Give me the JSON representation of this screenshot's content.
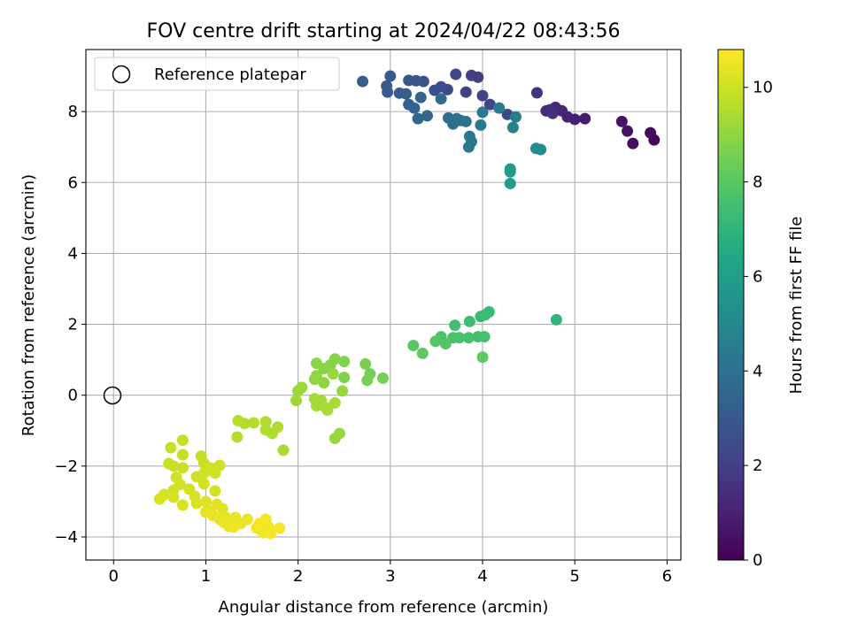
{
  "chart_data": {
    "type": "scatter",
    "title": "FOV centre drift starting at 2024/04/22 08:43:56",
    "xlabel": "Angular distance from reference (arcmin)",
    "ylabel": "Rotation from reference (arcmin)",
    "xlim": [
      -0.3,
      6.15
    ],
    "ylim": [
      -4.65,
      9.75
    ],
    "x_ticks": [
      0,
      1,
      2,
      3,
      4,
      5,
      6
    ],
    "y_ticks": [
      -4,
      -2,
      0,
      2,
      4,
      6,
      8
    ],
    "grid": true,
    "legend": {
      "position": "top-left",
      "entries": [
        {
          "label": "Reference platepar",
          "marker": "open-circle"
        }
      ]
    },
    "reference_point": {
      "x": 0,
      "y": 0
    },
    "colorbar": {
      "label": "Hours from first FF file",
      "colormap": "viridis",
      "range": [
        0,
        10.8
      ],
      "ticks": [
        0,
        2,
        4,
        6,
        8,
        10
      ]
    },
    "series": [
      {
        "color_by": "hours",
        "points": [
          [
            5.86,
            7.2,
            0.2
          ],
          [
            5.82,
            7.4,
            0.3
          ],
          [
            5.63,
            7.1,
            0.4
          ],
          [
            5.57,
            7.45,
            0.5
          ],
          [
            5.51,
            7.72,
            0.6
          ],
          [
            5.11,
            7.8,
            0.8
          ],
          [
            5.0,
            7.78,
            0.9
          ],
          [
            4.92,
            7.85,
            1.0
          ],
          [
            4.86,
            8.02,
            1.1
          ],
          [
            4.79,
            8.12,
            1.2
          ],
          [
            4.73,
            8.05,
            1.3
          ],
          [
            4.69,
            8.02,
            1.4
          ],
          [
            4.76,
            7.95,
            1.5
          ],
          [
            4.59,
            8.53,
            1.6
          ],
          [
            4.27,
            7.92,
            2.4
          ],
          [
            4.08,
            8.2,
            2.2
          ],
          [
            4.0,
            8.45,
            2.2
          ],
          [
            3.95,
            8.97,
            2.0
          ],
          [
            3.88,
            9.02,
            2.0
          ],
          [
            3.82,
            8.55,
            2.1
          ],
          [
            3.71,
            9.05,
            2.3
          ],
          [
            3.62,
            8.62,
            2.4
          ],
          [
            3.55,
            8.7,
            2.5
          ],
          [
            3.48,
            8.6,
            2.6
          ],
          [
            3.36,
            8.85,
            2.7
          ],
          [
            3.28,
            8.87,
            2.9
          ],
          [
            3.2,
            8.88,
            3.0
          ],
          [
            3.0,
            9.0,
            3.0
          ],
          [
            2.96,
            8.72,
            3.1
          ],
          [
            2.7,
            8.85,
            3.2
          ],
          [
            2.97,
            8.55,
            3.1
          ],
          [
            3.1,
            8.52,
            3.1
          ],
          [
            3.17,
            8.5,
            3.2
          ],
          [
            3.2,
            8.2,
            3.3
          ],
          [
            3.26,
            8.1,
            3.4
          ],
          [
            3.33,
            8.4,
            3.5
          ],
          [
            3.3,
            7.8,
            3.6
          ],
          [
            3.4,
            7.88,
            3.6
          ],
          [
            3.55,
            8.36,
            3.7
          ],
          [
            3.63,
            7.82,
            3.8
          ],
          [
            3.72,
            7.8,
            3.9
          ],
          [
            3.68,
            7.65,
            3.9
          ],
          [
            3.76,
            7.75,
            4.0
          ],
          [
            3.82,
            7.72,
            4.1
          ],
          [
            3.86,
            7.3,
            4.2
          ],
          [
            3.88,
            7.15,
            4.3
          ],
          [
            3.85,
            7.0,
            4.3
          ],
          [
            4.0,
            7.98,
            4.4
          ],
          [
            3.98,
            7.62,
            4.4
          ],
          [
            4.18,
            8.1,
            4.5
          ],
          [
            4.36,
            7.85,
            4.6
          ],
          [
            4.33,
            7.55,
            4.7
          ],
          [
            4.58,
            6.96,
            5.2
          ],
          [
            4.63,
            6.93,
            5.3
          ],
          [
            4.3,
            6.38,
            5.8
          ],
          [
            4.3,
            6.3,
            5.8
          ],
          [
            4.3,
            5.97,
            6.0
          ],
          [
            4.8,
            2.13,
            7.0
          ],
          [
            4.07,
            2.35,
            7.2
          ],
          [
            4.03,
            2.27,
            7.3
          ],
          [
            3.98,
            2.22,
            7.3
          ],
          [
            3.86,
            2.08,
            7.4
          ],
          [
            3.7,
            1.97,
            7.5
          ],
          [
            3.95,
            1.65,
            7.5
          ],
          [
            4.02,
            1.65,
            7.6
          ],
          [
            3.85,
            1.62,
            7.6
          ],
          [
            3.75,
            1.62,
            7.7
          ],
          [
            3.68,
            1.62,
            7.7
          ],
          [
            3.55,
            1.65,
            7.8
          ],
          [
            3.49,
            1.52,
            7.9
          ],
          [
            3.6,
            1.45,
            7.9
          ],
          [
            3.25,
            1.4,
            8.0
          ],
          [
            3.35,
            1.18,
            8.1
          ],
          [
            4.0,
            1.07,
            8.1
          ],
          [
            2.92,
            0.48,
            8.5
          ],
          [
            2.78,
            0.6,
            8.5
          ],
          [
            2.73,
            0.88,
            8.6
          ],
          [
            2.75,
            0.42,
            8.6
          ],
          [
            2.5,
            0.95,
            8.7
          ],
          [
            2.5,
            0.5,
            8.7
          ],
          [
            2.4,
            1.02,
            8.8
          ],
          [
            2.35,
            0.85,
            8.8
          ],
          [
            2.28,
            0.75,
            8.9
          ],
          [
            2.2,
            0.9,
            8.9
          ],
          [
            2.2,
            0.55,
            9.0
          ],
          [
            2.18,
            0.45,
            9.0
          ],
          [
            2.28,
            0.35,
            9.0
          ],
          [
            2.38,
            0.6,
            9.1
          ],
          [
            2.48,
            0.12,
            9.1
          ],
          [
            2.04,
            0.22,
            9.2
          ],
          [
            2.0,
            0.12,
            9.2
          ],
          [
            1.98,
            -0.15,
            9.2
          ],
          [
            2.18,
            -0.1,
            9.3
          ],
          [
            2.25,
            -0.15,
            9.3
          ],
          [
            2.2,
            -0.3,
            9.3
          ],
          [
            2.3,
            -0.35,
            9.4
          ],
          [
            2.4,
            -0.22,
            9.4
          ],
          [
            2.32,
            -0.42,
            9.4
          ],
          [
            2.45,
            -1.08,
            9.1
          ],
          [
            2.4,
            -1.22,
            9.1
          ],
          [
            1.84,
            -1.55,
            9.4
          ],
          [
            1.78,
            -0.9,
            9.5
          ],
          [
            1.72,
            -1.08,
            9.5
          ],
          [
            1.65,
            -0.98,
            9.5
          ],
          [
            1.65,
            -0.75,
            9.5
          ],
          [
            1.52,
            -0.78,
            9.6
          ],
          [
            1.42,
            -0.8,
            9.6
          ],
          [
            1.35,
            -0.72,
            9.6
          ],
          [
            1.34,
            -1.18,
            9.6
          ],
          [
            0.75,
            -1.27,
            9.8
          ],
          [
            0.62,
            -1.48,
            9.8
          ],
          [
            0.75,
            -1.68,
            9.8
          ],
          [
            0.95,
            -1.72,
            9.8
          ],
          [
            0.98,
            -1.92,
            9.9
          ],
          [
            0.6,
            -1.93,
            9.9
          ],
          [
            0.65,
            -2.0,
            9.9
          ],
          [
            0.75,
            -2.05,
            9.9
          ],
          [
            1.05,
            -2.05,
            10.0
          ],
          [
            1.15,
            -1.98,
            10.0
          ],
          [
            1.1,
            -2.2,
            10.0
          ],
          [
            0.98,
            -2.2,
            10.0
          ],
          [
            0.9,
            -2.3,
            10.0
          ],
          [
            0.68,
            -2.32,
            10.0
          ],
          [
            0.72,
            -2.52,
            10.1
          ],
          [
            0.65,
            -2.68,
            10.1
          ],
          [
            0.82,
            -2.65,
            10.1
          ],
          [
            0.98,
            -2.5,
            10.1
          ],
          [
            1.1,
            -2.7,
            10.1
          ],
          [
            0.55,
            -2.8,
            10.1
          ],
          [
            0.5,
            -2.93,
            10.2
          ],
          [
            0.65,
            -2.88,
            10.2
          ],
          [
            0.75,
            -3.1,
            10.2
          ],
          [
            0.88,
            -2.85,
            10.2
          ],
          [
            0.9,
            -3.05,
            10.2
          ],
          [
            1.0,
            -3.0,
            10.3
          ],
          [
            1.05,
            -3.28,
            10.3
          ],
          [
            1.12,
            -3.08,
            10.3
          ],
          [
            1.18,
            -3.2,
            10.3
          ],
          [
            1.22,
            -3.45,
            10.4
          ],
          [
            1.15,
            -3.5,
            10.4
          ],
          [
            1.25,
            -3.7,
            10.4
          ],
          [
            1.32,
            -3.45,
            10.5
          ],
          [
            1.38,
            -3.62,
            10.5
          ],
          [
            1.45,
            -3.5,
            10.5
          ],
          [
            1.55,
            -3.75,
            10.6
          ],
          [
            1.62,
            -3.88,
            10.6
          ],
          [
            1.68,
            -3.72,
            10.6
          ],
          [
            1.7,
            -3.9,
            10.7
          ],
          [
            1.8,
            -3.75,
            10.7
          ],
          [
            1.65,
            -3.5,
            10.7
          ],
          [
            1.58,
            -3.62,
            10.7
          ],
          [
            1.3,
            -3.72,
            10.6
          ],
          [
            1.2,
            -3.6,
            10.5
          ],
          [
            1.0,
            -3.3,
            10.4
          ],
          [
            1.08,
            -3.4,
            10.4
          ]
        ]
      }
    ]
  }
}
